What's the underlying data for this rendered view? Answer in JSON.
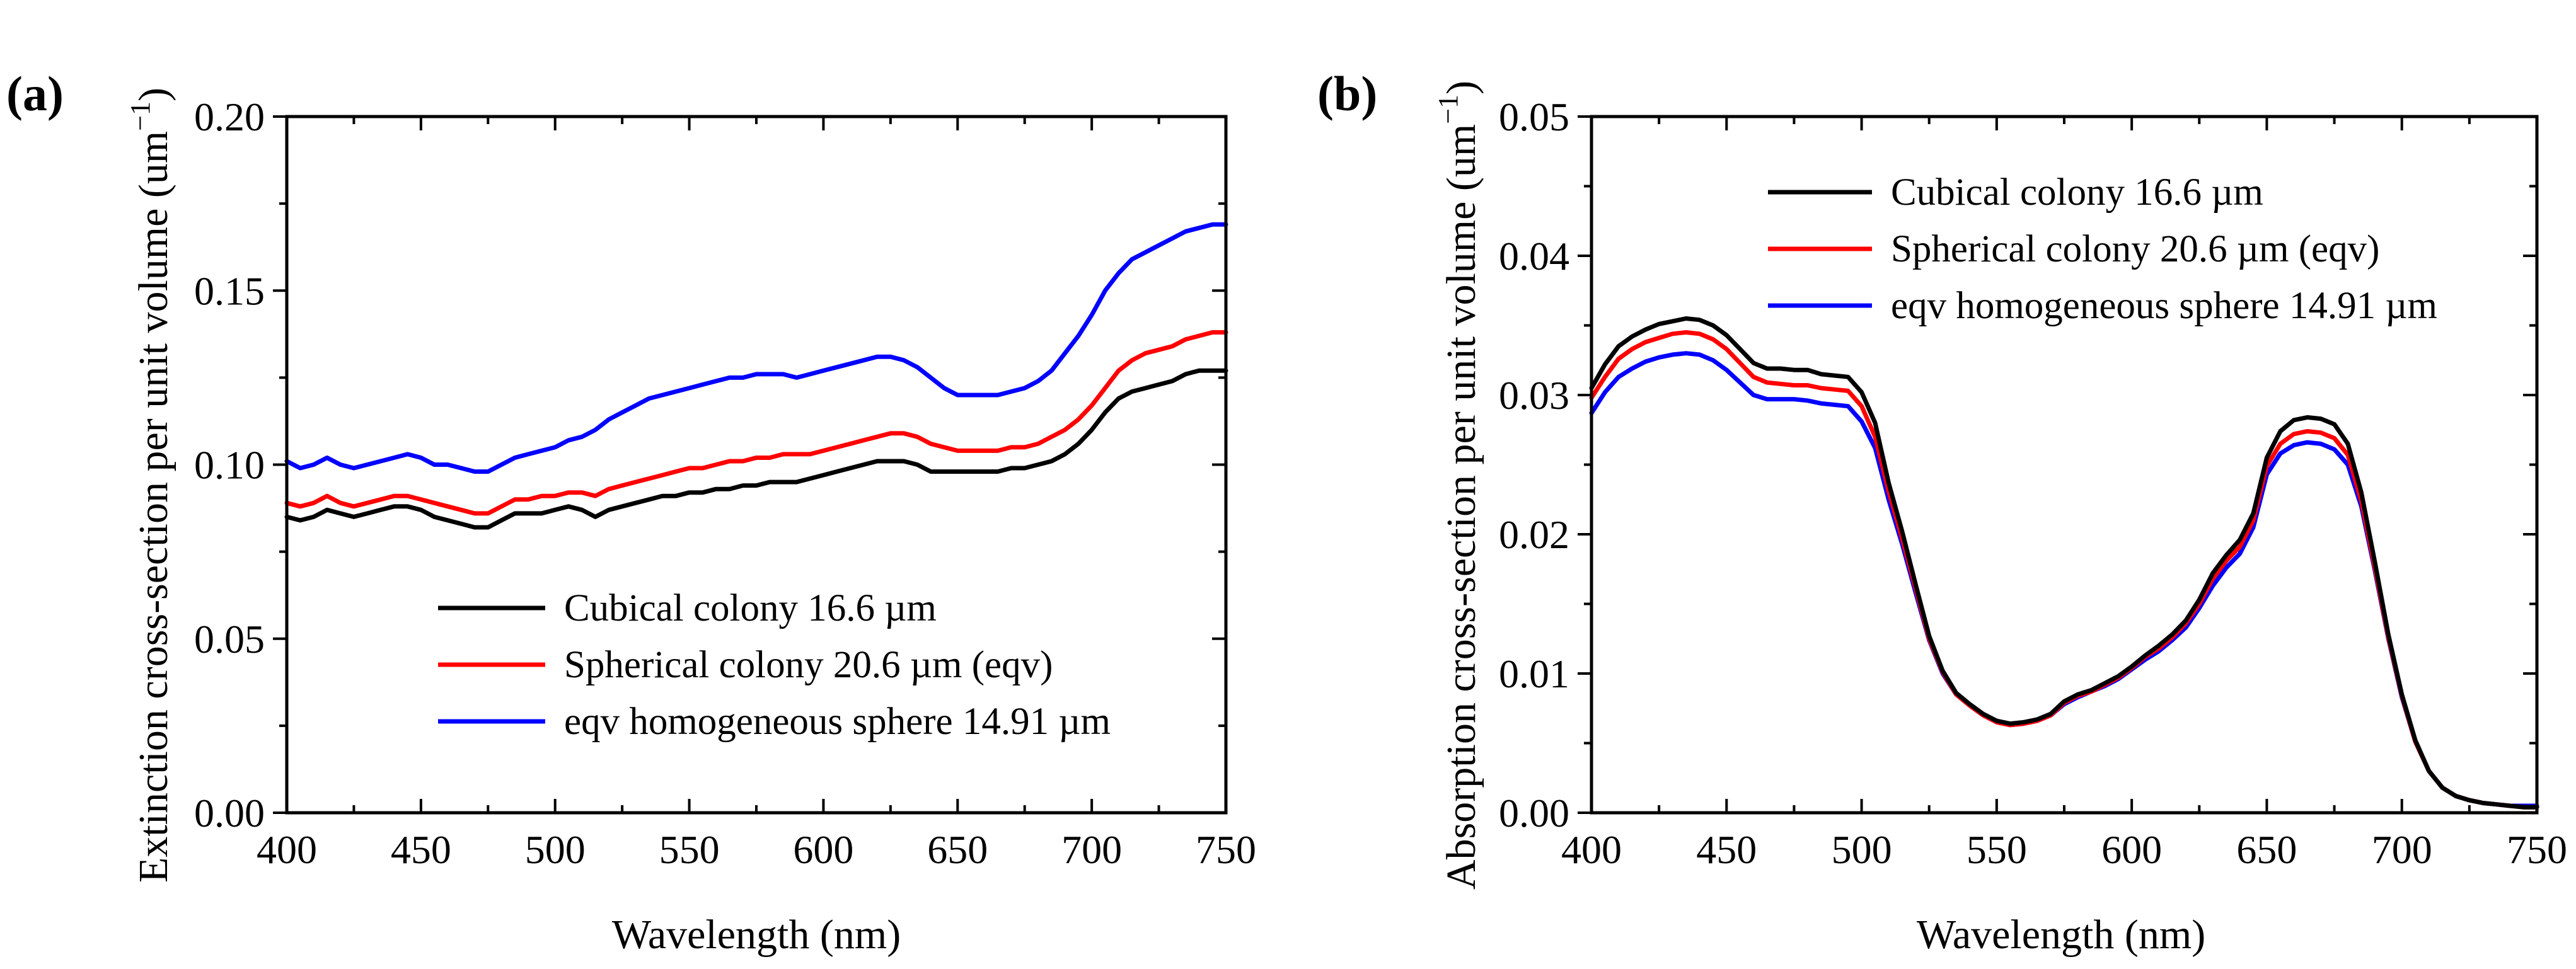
{
  "chart_data": [
    {
      "type": "line",
      "panel_label": "(a)",
      "title": "",
      "xlabel": "Wavelength (nm)",
      "ylabel_main": "Extinction cross-section per unit volume (um",
      "ylabel_sup": "−1",
      "ylabel_close": ")",
      "xlim": [
        400,
        750
      ],
      "ylim": [
        0.0,
        0.2
      ],
      "xticks": [
        400,
        450,
        500,
        550,
        600,
        650,
        700,
        750
      ],
      "xtick_labels": [
        "400",
        "450",
        "500",
        "550",
        "600",
        "650",
        "700",
        "750"
      ],
      "yticks": [
        0.0,
        0.05,
        0.1,
        0.15,
        0.2
      ],
      "ytick_labels": [
        "0.00",
        "0.05",
        "0.10",
        "0.15",
        "0.20"
      ],
      "legend_position": "lower-center",
      "x": [
        400,
        405,
        410,
        415,
        420,
        425,
        430,
        435,
        440,
        445,
        450,
        455,
        460,
        465,
        470,
        475,
        480,
        485,
        490,
        495,
        500,
        505,
        510,
        515,
        520,
        525,
        530,
        535,
        540,
        545,
        550,
        555,
        560,
        565,
        570,
        575,
        580,
        585,
        590,
        595,
        600,
        605,
        610,
        615,
        620,
        625,
        630,
        635,
        640,
        645,
        650,
        655,
        660,
        665,
        670,
        675,
        680,
        685,
        690,
        695,
        700,
        705,
        710,
        715,
        720,
        725,
        730,
        735,
        740,
        745,
        750
      ],
      "series": [
        {
          "name": "Cubical  colony 16.6 µm",
          "color": "#000000",
          "values": [
            0.085,
            0.084,
            0.085,
            0.087,
            0.086,
            0.085,
            0.086,
            0.087,
            0.088,
            0.088,
            0.087,
            0.085,
            0.084,
            0.083,
            0.082,
            0.082,
            0.084,
            0.086,
            0.086,
            0.086,
            0.087,
            0.088,
            0.087,
            0.085,
            0.087,
            0.088,
            0.089,
            0.09,
            0.091,
            0.091,
            0.092,
            0.092,
            0.093,
            0.093,
            0.094,
            0.094,
            0.095,
            0.095,
            0.095,
            0.096,
            0.097,
            0.098,
            0.099,
            0.1,
            0.101,
            0.101,
            0.101,
            0.1,
            0.098,
            0.098,
            0.098,
            0.098,
            0.098,
            0.098,
            0.099,
            0.099,
            0.1,
            0.101,
            0.103,
            0.106,
            0.11,
            0.115,
            0.119,
            0.121,
            0.122,
            0.123,
            0.124,
            0.126,
            0.127,
            0.127,
            0.127
          ]
        },
        {
          "name": "Spherical  colony 20.6 µm (eqv)",
          "color": "#ff0000",
          "values": [
            0.089,
            0.088,
            0.089,
            0.091,
            0.089,
            0.088,
            0.089,
            0.09,
            0.091,
            0.091,
            0.09,
            0.089,
            0.088,
            0.087,
            0.086,
            0.086,
            0.088,
            0.09,
            0.09,
            0.091,
            0.091,
            0.092,
            0.092,
            0.091,
            0.093,
            0.094,
            0.095,
            0.096,
            0.097,
            0.098,
            0.099,
            0.099,
            0.1,
            0.101,
            0.101,
            0.102,
            0.102,
            0.103,
            0.103,
            0.103,
            0.104,
            0.105,
            0.106,
            0.107,
            0.108,
            0.109,
            0.109,
            0.108,
            0.106,
            0.105,
            0.104,
            0.104,
            0.104,
            0.104,
            0.105,
            0.105,
            0.106,
            0.108,
            0.11,
            0.113,
            0.117,
            0.122,
            0.127,
            0.13,
            0.132,
            0.133,
            0.134,
            0.136,
            0.137,
            0.138,
            0.138
          ]
        },
        {
          "name": "eqv homogeneous sphere 14.91 µm",
          "color": "#0000ff",
          "values": [
            0.101,
            0.099,
            0.1,
            0.102,
            0.1,
            0.099,
            0.1,
            0.101,
            0.102,
            0.103,
            0.102,
            0.1,
            0.1,
            0.099,
            0.098,
            0.098,
            0.1,
            0.102,
            0.103,
            0.104,
            0.105,
            0.107,
            0.108,
            0.11,
            0.113,
            0.115,
            0.117,
            0.119,
            0.12,
            0.121,
            0.122,
            0.123,
            0.124,
            0.125,
            0.125,
            0.126,
            0.126,
            0.126,
            0.125,
            0.126,
            0.127,
            0.128,
            0.129,
            0.13,
            0.131,
            0.131,
            0.13,
            0.128,
            0.125,
            0.122,
            0.12,
            0.12,
            0.12,
            0.12,
            0.121,
            0.122,
            0.124,
            0.127,
            0.132,
            0.137,
            0.143,
            0.15,
            0.155,
            0.159,
            0.161,
            0.163,
            0.165,
            0.167,
            0.168,
            0.169,
            0.169
          ]
        }
      ]
    },
    {
      "type": "line",
      "panel_label": "(b)",
      "title": "",
      "xlabel": "Wavelength (nm)",
      "ylabel_main": "Absorption cross-section per unit volume (um",
      "ylabel_sup": "−1",
      "ylabel_close": ")",
      "xlim": [
        400,
        750
      ],
      "ylim": [
        0.0,
        0.05
      ],
      "xticks": [
        400,
        450,
        500,
        550,
        600,
        650,
        700,
        750
      ],
      "xtick_labels": [
        "400",
        "450",
        "500",
        "550",
        "600",
        "650",
        "700",
        "750"
      ],
      "yticks": [
        0.0,
        0.01,
        0.02,
        0.03,
        0.04,
        0.05
      ],
      "ytick_labels": [
        "0.00",
        "0.01",
        "0.02",
        "0.03",
        "0.04",
        "0.05"
      ],
      "legend_position": "upper-right",
      "x": [
        400,
        405,
        410,
        415,
        420,
        425,
        430,
        435,
        440,
        445,
        450,
        455,
        460,
        465,
        470,
        475,
        480,
        485,
        490,
        495,
        500,
        505,
        510,
        515,
        520,
        525,
        530,
        535,
        540,
        545,
        550,
        555,
        560,
        565,
        570,
        575,
        580,
        585,
        590,
        595,
        600,
        605,
        610,
        615,
        620,
        625,
        630,
        635,
        640,
        645,
        650,
        655,
        660,
        665,
        670,
        675,
        680,
        685,
        690,
        695,
        700,
        705,
        710,
        715,
        720,
        725,
        730,
        735,
        740,
        745,
        750
      ],
      "series": [
        {
          "name": "Cubical  colony 16.6 µm",
          "color": "#000000",
          "values": [
            0.0305,
            0.0322,
            0.0335,
            0.0342,
            0.0347,
            0.0351,
            0.0353,
            0.0355,
            0.0354,
            0.035,
            0.0343,
            0.0333,
            0.0323,
            0.0319,
            0.0319,
            0.0318,
            0.0318,
            0.0315,
            0.0314,
            0.0313,
            0.0302,
            0.028,
            0.0237,
            0.0202,
            0.0164,
            0.0127,
            0.0102,
            0.0086,
            0.0078,
            0.0071,
            0.0066,
            0.0064,
            0.0065,
            0.0067,
            0.0071,
            0.008,
            0.0085,
            0.0088,
            0.0093,
            0.0098,
            0.0105,
            0.0113,
            0.012,
            0.0128,
            0.0138,
            0.0153,
            0.0172,
            0.0185,
            0.0196,
            0.0215,
            0.0255,
            0.0274,
            0.0282,
            0.0284,
            0.0283,
            0.0279,
            0.0265,
            0.023,
            0.018,
            0.0128,
            0.0085,
            0.0052,
            0.003,
            0.0018,
            0.0012,
            0.0009,
            0.0007,
            0.0006,
            0.0005,
            0.0004,
            0.0004
          ]
        },
        {
          "name": "Spherical  colony 20.6 µm (eqv)",
          "color": "#ff0000",
          "values": [
            0.0298,
            0.0313,
            0.0326,
            0.0333,
            0.0338,
            0.0341,
            0.0344,
            0.0345,
            0.0344,
            0.034,
            0.0333,
            0.0323,
            0.0313,
            0.0309,
            0.0308,
            0.0307,
            0.0307,
            0.0305,
            0.0304,
            0.0303,
            0.0292,
            0.027,
            0.0231,
            0.0197,
            0.0161,
            0.0125,
            0.0101,
            0.0085,
            0.0077,
            0.007,
            0.0065,
            0.0063,
            0.0064,
            0.0066,
            0.007,
            0.0079,
            0.0084,
            0.0087,
            0.0092,
            0.0097,
            0.0104,
            0.0112,
            0.0118,
            0.0126,
            0.0136,
            0.015,
            0.0168,
            0.0181,
            0.0191,
            0.021,
            0.0249,
            0.0265,
            0.0272,
            0.0274,
            0.0273,
            0.0269,
            0.0257,
            0.0224,
            0.0176,
            0.0126,
            0.0084,
            0.0051,
            0.003,
            0.0018,
            0.0012,
            0.0009,
            0.0007,
            0.0006,
            0.0005,
            0.0004,
            0.0004
          ]
        },
        {
          "name": "eqv homogeneous sphere 14.91 µm",
          "color": "#0000ff",
          "values": [
            0.0287,
            0.0302,
            0.0313,
            0.0319,
            0.0324,
            0.0327,
            0.0329,
            0.033,
            0.0329,
            0.0325,
            0.0318,
            0.0309,
            0.03,
            0.0297,
            0.0297,
            0.0297,
            0.0296,
            0.0294,
            0.0293,
            0.0292,
            0.0281,
            0.0262,
            0.0225,
            0.0193,
            0.0158,
            0.0124,
            0.01,
            0.0085,
            0.0077,
            0.007,
            0.0065,
            0.0063,
            0.0064,
            0.0066,
            0.007,
            0.0078,
            0.0083,
            0.0087,
            0.0091,
            0.0096,
            0.0103,
            0.011,
            0.0116,
            0.0124,
            0.0133,
            0.0147,
            0.0163,
            0.0176,
            0.0186,
            0.0205,
            0.0243,
            0.0258,
            0.0264,
            0.0266,
            0.0265,
            0.0261,
            0.025,
            0.022,
            0.0174,
            0.0125,
            0.0083,
            0.0051,
            0.003,
            0.0018,
            0.0012,
            0.0009,
            0.0007,
            0.0006,
            0.0005,
            0.0005,
            0.0005
          ]
        }
      ]
    }
  ]
}
